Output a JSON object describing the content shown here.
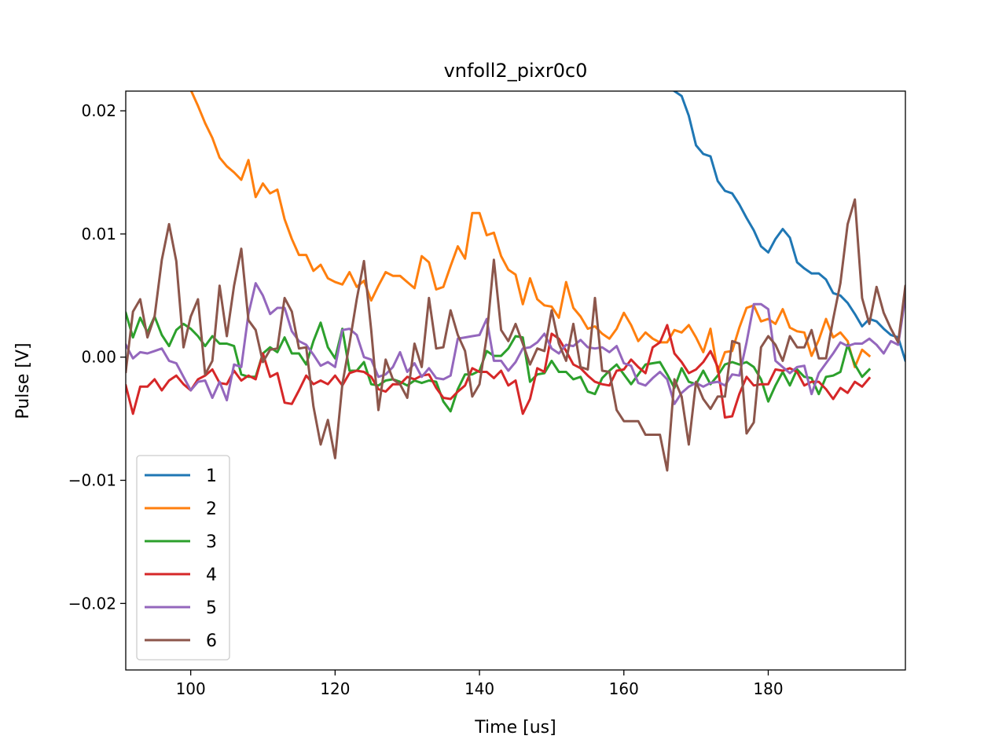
{
  "chart_data": {
    "type": "line",
    "title": "vnfoll2_pixr0c0",
    "xlabel": "Time [us]",
    "ylabel": "Pulse [V]",
    "xlim": [
      91,
      199
    ],
    "ylim": [
      -0.0254,
      0.0216
    ],
    "xticks": [
      100,
      120,
      140,
      160,
      180
    ],
    "xtick_labels": [
      "100",
      "120",
      "140",
      "160",
      "180"
    ],
    "yticks": [
      0.02,
      0.01,
      0.0,
      -0.01,
      -0.02
    ],
    "ytick_labels": [
      "0.02",
      "0.01",
      "0.00",
      "−0.01",
      "−0.02"
    ],
    "grid": false,
    "legend_position": "lower-left",
    "series": [
      {
        "name": "1",
        "color": "#1f77b4",
        "x_start": 167,
        "x_step": 1,
        "values": [
          0.0216,
          0.0212,
          0.0196,
          0.0172,
          0.0165,
          0.0163,
          0.0143,
          0.0135,
          0.0133,
          0.0124,
          0.0113,
          0.0103,
          0.009,
          0.0085,
          0.0096,
          0.0104,
          0.0097,
          0.0077,
          0.0072,
          0.0068,
          0.0068,
          0.0063,
          0.0052,
          0.005,
          0.0044,
          0.0035,
          0.0025,
          0.0031,
          0.0029,
          0.0023,
          0.0018,
          0.0016,
          -0.0003,
          0.0012
        ]
      },
      {
        "name": "2",
        "color": "#ff7f0e",
        "x_start": 91,
        "x_step": 1,
        "values": [
          0.0252,
          0.0248,
          0.0245,
          0.0243,
          0.024,
          0.0238,
          0.0236,
          0.023,
          0.0224,
          0.0217,
          0.0204,
          0.019,
          0.0178,
          0.0162,
          0.0155,
          0.015,
          0.0144,
          0.016,
          0.013,
          0.0141,
          0.0133,
          0.0136,
          0.0112,
          0.0096,
          0.0083,
          0.0083,
          0.007,
          0.0075,
          0.0064,
          0.0061,
          0.0059,
          0.0069,
          0.0057,
          0.0062,
          0.0046,
          0.0058,
          0.0069,
          0.0066,
          0.0066,
          0.0061,
          0.0056,
          0.0082,
          0.0077,
          0.0055,
          0.0057,
          0.0074,
          0.009,
          0.008,
          0.0117,
          0.0117,
          0.0099,
          0.0101,
          0.0082,
          0.0071,
          0.0067,
          0.0043,
          0.0064,
          0.0047,
          0.0042,
          0.0041,
          0.0032,
          0.0061,
          0.004,
          0.0033,
          0.0023,
          0.0025,
          0.0019,
          0.0015,
          0.0023,
          0.0036,
          0.0026,
          0.0013,
          0.002,
          0.0015,
          0.0012,
          0.0012,
          0.0022,
          0.002,
          0.0026,
          0.0016,
          0.0004,
          0.0023,
          -0.0012,
          0.0004,
          0.0005,
          0.0024,
          0.004,
          0.0042,
          0.0029,
          0.0031,
          0.0027,
          0.0039,
          0.0024,
          0.0021,
          0.002,
          0.0001,
          0.0014,
          0.0031,
          0.0016,
          0.002,
          0.0013,
          -0.0008,
          0.0006,
          0.0001
        ]
      },
      {
        "name": "3",
        "color": "#2ca02c",
        "x_start": 91,
        "x_step": 1,
        "values": [
          0.0036,
          0.0016,
          0.0032,
          0.002,
          0.0033,
          0.0018,
          0.0009,
          0.0022,
          0.0027,
          0.0023,
          0.0017,
          0.0009,
          0.0017,
          0.0011,
          0.0011,
          0.0009,
          -0.0014,
          -0.0016,
          -0.0016,
          0.0003,
          0.0008,
          0.0004,
          0.0016,
          0.0003,
          0.0003,
          -0.0006,
          0.0013,
          0.0028,
          0.0008,
          -0.0001,
          0.0023,
          -0.0011,
          -0.0011,
          -0.0004,
          -0.0022,
          -0.0023,
          -0.0019,
          -0.0018,
          -0.002,
          -0.0023,
          -0.0019,
          -0.0021,
          -0.0019,
          -0.002,
          -0.0036,
          -0.0044,
          -0.0026,
          -0.0014,
          -0.0014,
          -0.0011,
          0.0005,
          0.0001,
          0.0001,
          0.0007,
          0.0017,
          0.0016,
          -0.002,
          -0.0014,
          -0.0013,
          -0.0003,
          -0.0012,
          -0.0012,
          -0.0018,
          -0.0016,
          -0.0028,
          -0.003,
          -0.0017,
          -0.0011,
          -0.0006,
          -0.0014,
          -0.0022,
          -0.0014,
          -0.0006,
          -0.0005,
          -0.0004,
          -0.0014,
          -0.0025,
          -0.0009,
          -0.002,
          -0.0022,
          -0.0011,
          -0.0022,
          -0.0015,
          -0.0006,
          -0.0004,
          -0.0006,
          -0.0004,
          -0.0008,
          -0.0018,
          -0.0036,
          -0.0023,
          -0.0012,
          -0.0023,
          -0.001,
          -0.0016,
          -0.0017,
          -0.003,
          -0.0016,
          -0.0015,
          -0.0012,
          0.001,
          -0.0006,
          -0.0016,
          -0.001
        ]
      },
      {
        "name": "4",
        "color": "#d62728",
        "x_start": 91,
        "x_step": 1,
        "values": [
          -0.0023,
          -0.0046,
          -0.0024,
          -0.0024,
          -0.0018,
          -0.0027,
          -0.0019,
          -0.0015,
          -0.0022,
          -0.0027,
          -0.0018,
          -0.0015,
          -0.001,
          -0.0021,
          -0.0022,
          -0.0011,
          -0.0019,
          -0.0015,
          -0.0018,
          0.0003,
          -0.0016,
          -0.0013,
          -0.0037,
          -0.0038,
          -0.0027,
          -0.0015,
          -0.0022,
          -0.0019,
          -0.0022,
          -0.0015,
          -0.0023,
          -0.0013,
          -0.0011,
          -0.0012,
          -0.0016,
          -0.0026,
          -0.0028,
          -0.0022,
          -0.0022,
          -0.0016,
          -0.0018,
          -0.0015,
          -0.0014,
          -0.0025,
          -0.0033,
          -0.0034,
          -0.0028,
          -0.0023,
          -0.0009,
          -0.0012,
          -0.0012,
          -0.0017,
          -0.0011,
          -0.0023,
          -0.0019,
          -0.0046,
          -0.0034,
          -0.0009,
          -0.0012,
          0.0019,
          0.0015,
          0.0005,
          -0.0006,
          -0.0009,
          -0.0015,
          -0.002,
          -0.0022,
          -0.0023,
          -0.0011,
          -0.001,
          -0.0002,
          -0.0008,
          -0.0013,
          0.0008,
          0.0012,
          0.0026,
          0.0003,
          -0.0004,
          -0.0013,
          -0.001,
          -0.0004,
          0.0005,
          -0.0008,
          -0.0049,
          -0.0048,
          -0.003,
          -0.0016,
          -0.0023,
          -0.0022,
          -0.0022,
          -0.001,
          -0.0011,
          -0.0009,
          -0.0012,
          -0.0023,
          -0.002,
          -0.002,
          -0.0026,
          -0.0034,
          -0.0025,
          -0.0029,
          -0.002,
          -0.0024,
          -0.0017
        ]
      },
      {
        "name": "5",
        "color": "#9467bd",
        "x_start": 91,
        "x_step": 1,
        "values": [
          0.001,
          -0.0001,
          0.0004,
          0.0003,
          0.0005,
          0.0007,
          -0.0003,
          -0.0005,
          -0.0016,
          -0.0027,
          -0.002,
          -0.0019,
          -0.0033,
          -0.002,
          -0.0035,
          -0.0006,
          -0.0008,
          0.0035,
          0.006,
          0.005,
          0.0035,
          0.004,
          0.004,
          0.0021,
          0.0013,
          0.001,
          0.0002,
          -0.0007,
          -0.0004,
          -0.0008,
          0.0022,
          0.0023,
          0.0018,
          0.0,
          -0.0002,
          -0.0016,
          -0.0014,
          -0.0008,
          0.0004,
          -0.0012,
          -0.0005,
          -0.0016,
          -0.0009,
          -0.0017,
          -0.0018,
          -0.0015,
          0.0015,
          0.0016,
          0.0017,
          0.0018,
          0.0031,
          -0.0003,
          -0.0003,
          -0.0011,
          -0.0004,
          0.0007,
          0.0008,
          0.0012,
          0.0019,
          0.0007,
          0.0003,
          0.001,
          0.0009,
          0.0014,
          0.0008,
          0.0007,
          0.0008,
          0.0004,
          0.0009,
          -0.0005,
          -0.0007,
          -0.0021,
          -0.0023,
          -0.0017,
          -0.0012,
          -0.0018,
          -0.0038,
          -0.0029,
          -0.0024,
          -0.0021,
          -0.0024,
          -0.0021,
          -0.002,
          -0.0023,
          -0.0014,
          -0.0015,
          0.0012,
          0.0043,
          0.0043,
          0.0039,
          -0.0003,
          -0.0008,
          -0.0013,
          -0.0008,
          -0.0007,
          -0.003,
          -0.0013,
          -0.0005,
          0.0003,
          0.0012,
          0.0009,
          0.0011,
          0.0011,
          0.0015,
          0.001,
          0.0003,
          0.0013,
          0.001,
          0.0049,
          0.0012,
          0.0012
        ]
      },
      {
        "name": "6",
        "color": "#8c564b",
        "x_start": 91,
        "x_step": 1,
        "values": [
          -0.0012,
          0.0037,
          0.0047,
          0.0016,
          0.0033,
          0.0079,
          0.0108,
          0.0078,
          0.0008,
          0.0033,
          0.0047,
          -0.0014,
          -0.0003,
          0.0058,
          0.0017,
          0.0058,
          0.0088,
          0.003,
          0.0022,
          -0.0004,
          0.0006,
          0.0007,
          0.0048,
          0.0037,
          0.0007,
          0.0008,
          -0.004,
          -0.0071,
          -0.0051,
          -0.0082,
          -0.0022,
          0.0011,
          0.0047,
          0.0078,
          0.0022,
          -0.0043,
          -0.0002,
          -0.0018,
          -0.0022,
          -0.0033,
          0.0011,
          -0.0008,
          0.0048,
          0.0007,
          0.0008,
          0.0038,
          0.0018,
          0.0005,
          -0.0032,
          -0.0022,
          0.0017,
          0.0079,
          0.0022,
          0.0013,
          0.0027,
          0.0011,
          -0.0006,
          0.0007,
          0.0005,
          0.0038,
          0.0011,
          -0.0003,
          0.0027,
          -0.0008,
          -0.001,
          0.0048,
          -0.0011,
          -0.0012,
          -0.0043,
          -0.0052,
          -0.0052,
          -0.0052,
          -0.0063,
          -0.0063,
          -0.0063,
          -0.0092,
          -0.0018,
          -0.0032,
          -0.0071,
          -0.002,
          -0.0034,
          -0.0042,
          -0.0032,
          -0.0032,
          0.0013,
          0.0011,
          -0.0062,
          -0.0053,
          0.0008,
          0.0017,
          0.001,
          -0.0003,
          0.0017,
          0.0008,
          0.0008,
          0.0022,
          -0.0001,
          -0.0001,
          0.0031,
          0.006,
          0.0108,
          0.0128,
          0.0048,
          0.0027,
          0.0057,
          0.0036,
          0.0023,
          0.0012,
          0.0058,
          -0.0002,
          -0.0032,
          -0.0042
        ]
      }
    ]
  }
}
